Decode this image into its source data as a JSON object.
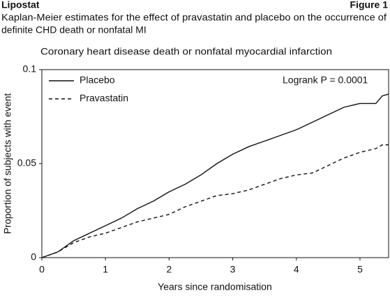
{
  "chart_data": {
    "type": "line",
    "brand": "Lipostat",
    "figure_label": "Figure 1",
    "subtitle_lines": [
      "Kaplan-Meier estimates for the effect of pravastatin and placebo on the occurrence of",
      "definite CHD death or nonfatal MI"
    ],
    "title": "Coronary heart disease death or nonfatal myocardial infarction",
    "x_label": "Years since randomisation",
    "y_label": "Proportion of subjects with event",
    "annotation": "Logrank P = 0.0001",
    "legend": "upper left",
    "x": [
      0,
      0.25,
      0.5,
      0.75,
      1.0,
      1.25,
      1.5,
      1.75,
      2.0,
      2.25,
      2.5,
      2.75,
      3.0,
      3.25,
      3.5,
      3.75,
      4.0,
      4.25,
      4.5,
      4.75,
      5.0,
      5.25,
      5.35,
      5.45
    ],
    "series": [
      {
        "name": "Placebo",
        "color": "#111111",
        "dash": "solid",
        "values": [
          0,
          0.003,
          0.009,
          0.013,
          0.017,
          0.021,
          0.026,
          0.03,
          0.035,
          0.039,
          0.044,
          0.05,
          0.055,
          0.059,
          0.062,
          0.065,
          0.068,
          0.072,
          0.076,
          0.08,
          0.082,
          0.082,
          0.086,
          0.087
        ]
      },
      {
        "name": "Pravastatin",
        "color": "#111111",
        "dash": "dashed",
        "values": [
          0,
          0.003,
          0.008,
          0.011,
          0.013,
          0.016,
          0.019,
          0.021,
          0.023,
          0.027,
          0.03,
          0.033,
          0.034,
          0.036,
          0.039,
          0.042,
          0.044,
          0.045,
          0.049,
          0.053,
          0.056,
          0.058,
          0.06,
          0.06
        ]
      }
    ],
    "xlim": [
      0,
      5.45
    ],
    "xticks": [
      0,
      1,
      2,
      3,
      4,
      5
    ],
    "ylim": [
      0,
      0.1
    ],
    "yticks": [
      0,
      0.05,
      0.1
    ],
    "grid": false
  }
}
